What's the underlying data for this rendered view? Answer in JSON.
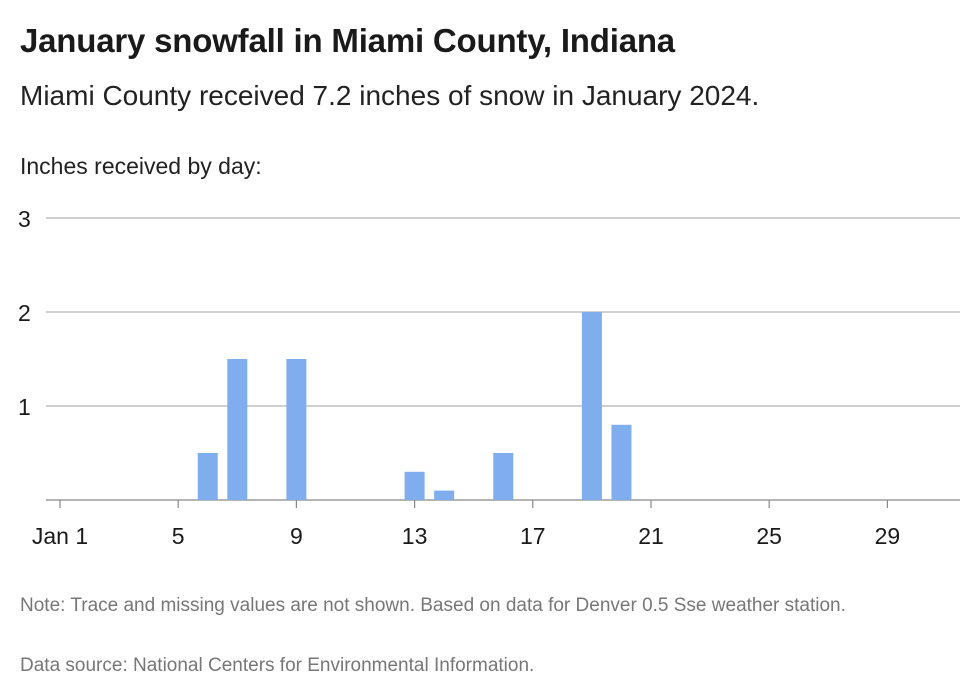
{
  "header": {
    "title": "January snowfall in Miami County, Indiana",
    "subtitle": "Miami County received 7.2 inches of snow in January 2024."
  },
  "footer": {
    "note": "Note: Trace and missing values are not shown. Based on data for Denver 0.5 Sse weather station.",
    "source": "Data source: National Centers for Environmental Information."
  },
  "chart_data": {
    "type": "bar",
    "title": "January snowfall in Miami County, Indiana",
    "subtitle": "Miami County received 7.2 inches of snow in January 2024.",
    "ylabel": "Inches received by day:",
    "xlabel": "",
    "ylim": [
      0,
      3
    ],
    "yticks": [
      1,
      2,
      3
    ],
    "xlim": [
      1,
      31
    ],
    "xticks": [
      1,
      5,
      9,
      13,
      17,
      21,
      25,
      29
    ],
    "xtick_labels": [
      "Jan 1",
      "5",
      "9",
      "13",
      "17",
      "21",
      "25",
      "29"
    ],
    "grid": true,
    "bar_color": "#7fadee",
    "x": [
      6,
      7,
      9,
      13,
      14,
      16,
      19,
      20
    ],
    "values": [
      0.5,
      1.5,
      1.5,
      0.3,
      0.1,
      0.5,
      2.0,
      0.8
    ]
  }
}
